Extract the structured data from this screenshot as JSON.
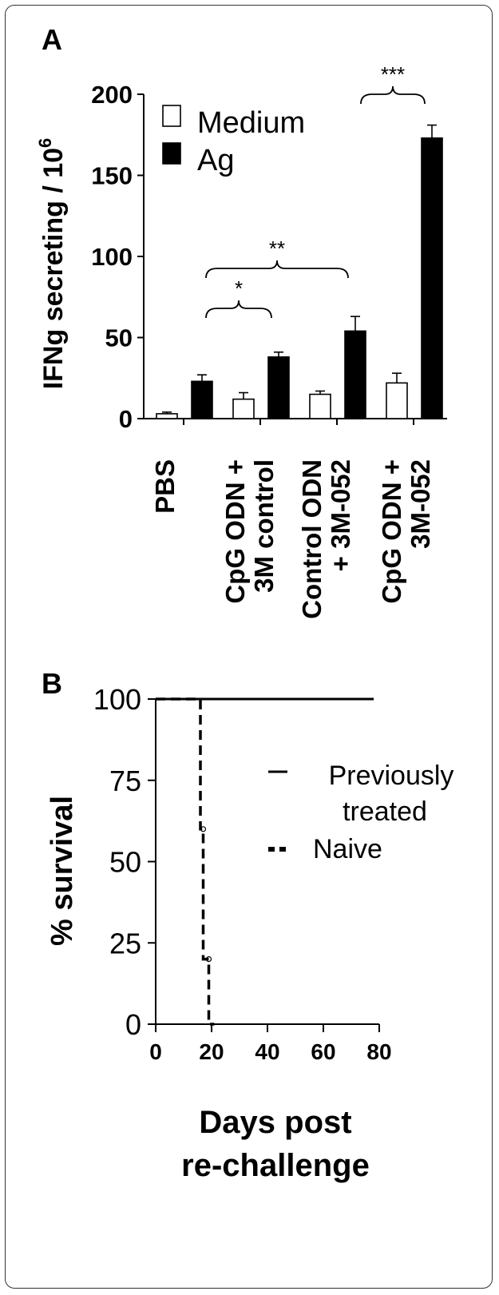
{
  "chart_data": [
    {
      "type": "bar",
      "panel_label": "A",
      "ylabel": "IFNg secreting / 10",
      "ylabel_superscript": "6",
      "ylim": [
        0,
        200
      ],
      "yticks": [
        "0",
        "50",
        "100",
        "150",
        "200"
      ],
      "categories": [
        {
          "line1": "PBS",
          "line2": ""
        },
        {
          "line1": "CpG ODN +",
          "line2": "3M control"
        },
        {
          "line1": "Control ODN",
          "line2": "+ 3M-052"
        },
        {
          "line1": "CpG ODN +",
          "line2": "3M-052"
        }
      ],
      "series": [
        {
          "name": "Medium",
          "values": [
            3,
            12,
            15,
            22
          ],
          "errors": [
            1,
            4,
            2,
            6
          ],
          "color": "#ffffff"
        },
        {
          "name": "Ag",
          "values": [
            23,
            38,
            54,
            173
          ],
          "errors": [
            4,
            3,
            9,
            8
          ],
          "color": "#000000"
        }
      ],
      "legend": {
        "position": "top-left"
      },
      "significance": [
        {
          "label": "*",
          "from_category": 1,
          "to_category": 1
        },
        {
          "label": "**",
          "from_category": 1,
          "to_category": 2
        },
        {
          "label": "***",
          "from_category": 3,
          "to_category": 3
        }
      ]
    },
    {
      "type": "line",
      "panel_label": "B",
      "ylabel": "% survival",
      "xlabel_line1": "Days post",
      "xlabel_line2": "re-challenge",
      "xlim": [
        0,
        80
      ],
      "ylim": [
        0,
        100
      ],
      "xticks": [
        "0",
        "20",
        "40",
        "60",
        "80"
      ],
      "yticks": [
        "0",
        "25",
        "50",
        "75",
        "100"
      ],
      "series": [
        {
          "name": "Previously treated",
          "name_line1": "Previously",
          "name_line2": "treated",
          "style": "solid",
          "x": [
            0,
            78
          ],
          "y": [
            100,
            100
          ]
        },
        {
          "name": "Naive",
          "style": "dashed",
          "x": [
            0,
            16,
            16,
            17,
            17,
            19,
            19,
            21,
            21
          ],
          "y": [
            100,
            100,
            60,
            60,
            20,
            20,
            0,
            0,
            0
          ]
        }
      ],
      "legend": {
        "position": "right"
      }
    }
  ]
}
